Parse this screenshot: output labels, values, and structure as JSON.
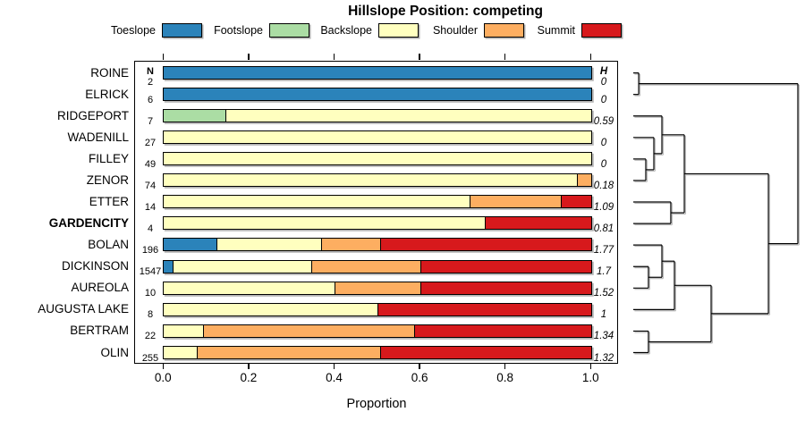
{
  "title": "Hillslope Position: competing",
  "legend": [
    {
      "label": "Toeslope",
      "color": "#2B83BA"
    },
    {
      "label": "Footslope",
      "color": "#ABDDA4"
    },
    {
      "label": "Backslope",
      "color": "#FFFFBF"
    },
    {
      "label": "Shoulder",
      "color": "#FDAE61"
    },
    {
      "label": "Summit",
      "color": "#D7191C"
    }
  ],
  "columns": {
    "n_header": "N",
    "h_header": "H"
  },
  "axis": {
    "label": "Proportion",
    "ticks": [
      "0.0",
      "0.2",
      "0.4",
      "0.6",
      "0.8",
      "1.0"
    ]
  },
  "chart_data": {
    "type": "bar",
    "orientation": "horizontal",
    "stacked": true,
    "title": "Hillslope Position: competing",
    "xlabel": "Proportion",
    "xlim": [
      0,
      1
    ],
    "xticks": [
      0,
      0.2,
      0.4,
      0.6,
      0.8,
      1.0
    ],
    "categories": [
      "ROINE",
      "ELRICK",
      "RIDGEPORT",
      "WADENILL",
      "FILLEY",
      "ZENOR",
      "ETTER",
      "GARDENCITY",
      "BOLAN",
      "DICKINSON",
      "AUREOLA",
      "AUGUSTA LAKE",
      "BERTRAM",
      "OLIN"
    ],
    "bold_category": "GARDENCITY",
    "n_values": [
      "2",
      "6",
      "7",
      "27",
      "49",
      "74",
      "14",
      "4",
      "196",
      "1547",
      "10",
      "8",
      "22",
      "255"
    ],
    "h_values": [
      "0",
      "0",
      "0.59",
      "0",
      "0",
      "0.18",
      "1.09",
      "0.81",
      "1.77",
      "1.7",
      "1.52",
      "1",
      "1.34",
      "1.32"
    ],
    "series": [
      {
        "name": "Toeslope",
        "color": "#2B83BA",
        "values": [
          1,
          1,
          0,
          0,
          0,
          0,
          0,
          0,
          0.122,
          0.021,
          0,
          0,
          0,
          0
        ]
      },
      {
        "name": "Footslope",
        "color": "#ABDDA4",
        "values": [
          0,
          0,
          0.143,
          0,
          0,
          0,
          0,
          0,
          0,
          0,
          0,
          0,
          0,
          0
        ]
      },
      {
        "name": "Backslope",
        "color": "#FFFFBF",
        "values": [
          0,
          0,
          0.857,
          1,
          1,
          0.965,
          0.714,
          0.75,
          0.245,
          0.324,
          0.4,
          0.5,
          0.091,
          0.077
        ]
      },
      {
        "name": "Shoulder",
        "color": "#FDAE61",
        "values": [
          0,
          0,
          0,
          0,
          0,
          0.035,
          0.214,
          0,
          0.138,
          0.255,
          0.2,
          0,
          0.495,
          0.428
        ]
      },
      {
        "name": "Summit",
        "color": "#D7191C",
        "values": [
          0,
          0,
          0,
          0,
          0,
          0,
          0.072,
          0.25,
          0.495,
          0.4,
          0.4,
          0.5,
          0.414,
          0.495
        ]
      }
    ],
    "dendrogram": {
      "position": "right",
      "merges": [
        {
          "a": "L0",
          "b": "L1",
          "h": 0.033
        },
        {
          "a": "L4",
          "b": "L5",
          "h": 0.076
        },
        {
          "a": "L3",
          "b": "M1",
          "h": 0.125
        },
        {
          "a": "L2",
          "b": "M2",
          "h": 0.174
        },
        {
          "a": "L6",
          "b": "L7",
          "h": 0.228
        },
        {
          "a": "M3",
          "b": "M4",
          "h": 0.31
        },
        {
          "a": "L9",
          "b": "L10",
          "h": 0.092
        },
        {
          "a": "L8",
          "b": "M6",
          "h": 0.174
        },
        {
          "a": "M7",
          "b": "L11",
          "h": 0.25
        },
        {
          "a": "L12",
          "b": "L13",
          "h": 0.092
        },
        {
          "a": "M8",
          "b": "M9",
          "h": 0.473
        },
        {
          "a": "M5",
          "b": "M10",
          "h": 0.821
        },
        {
          "a": "M0",
          "b": "M11",
          "h": 1.0
        }
      ]
    }
  }
}
